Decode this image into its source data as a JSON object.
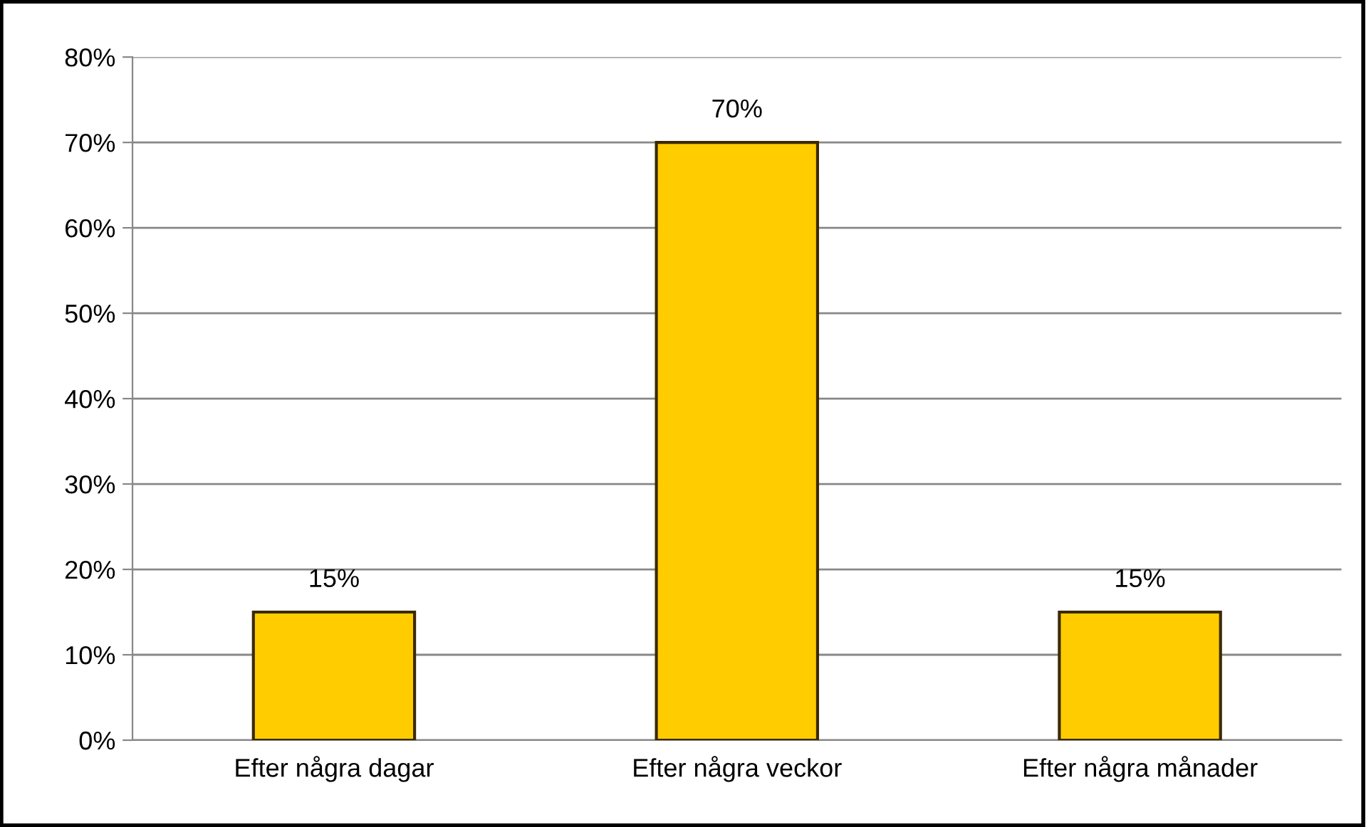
{
  "chart_data": {
    "type": "bar",
    "categories": [
      "Efter några dagar",
      "Efter några veckor",
      "Efter några månader"
    ],
    "values": [
      15,
      70,
      15
    ],
    "color": "#ffcc00",
    "value_labels": [
      "15%",
      "70%",
      "15%"
    ],
    "ylim": [
      0,
      80
    ],
    "yticks": [
      {
        "value": 0,
        "label": "0%"
      },
      {
        "value": 10,
        "label": "10%"
      },
      {
        "value": 20,
        "label": "20%"
      },
      {
        "value": 30,
        "label": "30%"
      },
      {
        "value": 40,
        "label": "40%"
      },
      {
        "value": 50,
        "label": "50%"
      },
      {
        "value": 60,
        "label": "60%"
      },
      {
        "value": 70,
        "label": "70%"
      },
      {
        "value": 80,
        "label": "80%"
      }
    ],
    "grid": "y",
    "legend": false
  }
}
